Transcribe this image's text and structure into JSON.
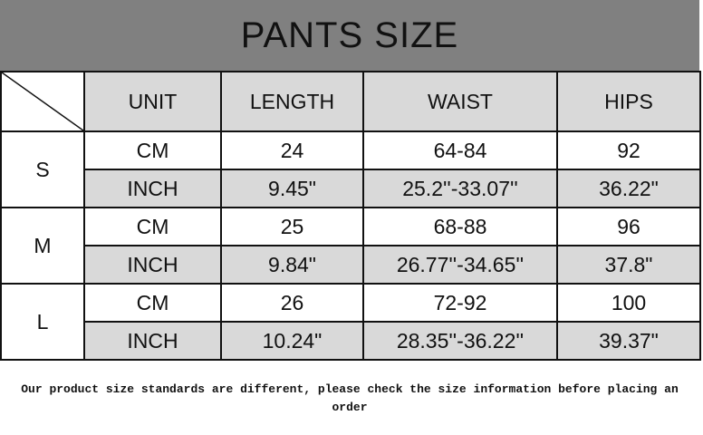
{
  "title": "PANTS SIZE",
  "headers": [
    "UNIT",
    "LENGTH",
    "WAIST",
    "HIPS"
  ],
  "rows": [
    {
      "size": "S",
      "cm": [
        "CM",
        "24",
        "64-84",
        "92"
      ],
      "inch": [
        "INCH",
        "9.45\"",
        "25.2''-33.07''",
        "36.22\""
      ]
    },
    {
      "size": "M",
      "cm": [
        "CM",
        "25",
        "68-88",
        "96"
      ],
      "inch": [
        "INCH",
        "9.84\"",
        "26.77''-34.65''",
        "37.8\""
      ]
    },
    {
      "size": "L",
      "cm": [
        "CM",
        "26",
        "72-92",
        "100"
      ],
      "inch": [
        "INCH",
        "10.24\"",
        "28.35''-36.22''",
        "39.37\""
      ]
    }
  ],
  "note": "Our product size standards are different, please check the size information before placing an order"
}
